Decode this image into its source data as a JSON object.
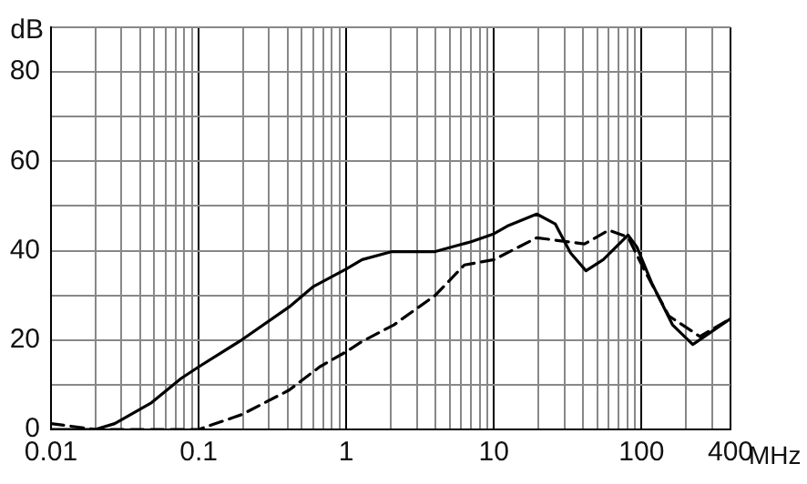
{
  "chart_data": {
    "type": "line",
    "xlabel": "MHz",
    "ylabel": "dB",
    "log": "x",
    "grid": true,
    "legend": false,
    "marker": "none",
    "xlim": [
      0.01,
      400
    ],
    "ylim": [
      0,
      90
    ],
    "xticks": [
      0.01,
      {
        "value": 0.02,
        "label": null
      },
      {
        "value": 0.03,
        "label": null
      },
      {
        "value": 0.04,
        "label": null
      },
      {
        "value": 0.05,
        "label": null
      },
      {
        "value": 0.06,
        "label": null
      },
      {
        "value": 0.07,
        "label": null
      },
      {
        "value": 0.08,
        "label": null
      },
      {
        "value": 0.09,
        "label": null
      },
      0.1,
      {
        "value": 0.2,
        "label": null
      },
      {
        "value": 0.3,
        "label": null
      },
      {
        "value": 0.4,
        "label": null
      },
      {
        "value": 0.5,
        "label": null
      },
      {
        "value": 0.6,
        "label": null
      },
      {
        "value": 0.7,
        "label": null
      },
      {
        "value": 0.8,
        "label": null
      },
      {
        "value": 0.9,
        "label": null
      },
      1,
      {
        "value": 2,
        "label": null
      },
      {
        "value": 3,
        "label": null
      },
      {
        "value": 4,
        "label": null
      },
      {
        "value": 5,
        "label": null
      },
      {
        "value": 6,
        "label": null
      },
      {
        "value": 7,
        "label": null
      },
      {
        "value": 8,
        "label": null
      },
      {
        "value": 9,
        "label": null
      },
      10,
      {
        "value": 20,
        "label": null
      },
      {
        "value": 30,
        "label": null
      },
      {
        "value": 40,
        "label": null
      },
      {
        "value": 50,
        "label": null
      },
      {
        "value": 60,
        "label": null
      },
      {
        "value": 70,
        "label": null
      },
      {
        "value": 80,
        "label": null
      },
      {
        "value": 90,
        "label": null
      },
      100,
      {
        "value": 200,
        "label": null
      },
      {
        "value": 300,
        "label": null
      },
      400
    ],
    "yticks": [
      0,
      {
        "value": 10,
        "label": null
      },
      20,
      {
        "value": 30,
        "label": null
      },
      40,
      {
        "value": 50,
        "label": null
      },
      60,
      {
        "value": 70,
        "label": null
      },
      80,
      {
        "value": 90,
        "label": null
      }
    ],
    "series": [
      {
        "color": "#000000",
        "line_style": "solid",
        "x": [
          0.01,
          0.02,
          0.027,
          0.048,
          0.076,
          0.1,
          0.195,
          0.41,
          0.6,
          1,
          1.28,
          2.04,
          4,
          7,
          10,
          12.3,
          19.5,
          26,
          33,
          42,
          55,
          81,
          93,
          117,
          162,
          222,
          400
        ],
        "values": [
          0,
          0,
          1.3,
          6,
          11.4,
          14,
          20,
          27.4,
          32,
          35.9,
          38,
          39.8,
          39.8,
          42,
          43.8,
          45.5,
          48.2,
          46,
          39.5,
          35.5,
          38,
          43.5,
          40.8,
          32.8,
          23.4,
          19,
          24.8
        ]
      },
      {
        "color": "#000000",
        "line_style": "dashed",
        "x": [
          0.01,
          0.02,
          0.05,
          0.1,
          0.195,
          0.41,
          0.66,
          1,
          1.28,
          2.1,
          4,
          6.3,
          10,
          19.5,
          41,
          60,
          81,
          105,
          153,
          248,
          400
        ],
        "values": [
          1.3,
          0,
          0,
          0,
          3.3,
          8.8,
          14,
          17.4,
          19.7,
          23.4,
          30,
          36.8,
          38,
          42.9,
          41.5,
          44.6,
          43,
          35.5,
          25.4,
          20.8,
          24.8
        ]
      }
    ]
  }
}
